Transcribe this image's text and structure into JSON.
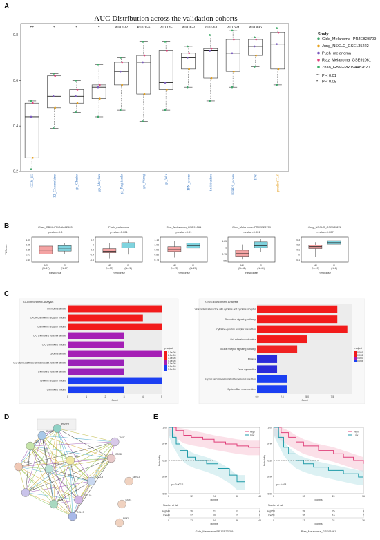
{
  "panels": {
    "a": "A",
    "b": "B",
    "c": "C",
    "d": "D",
    "e": "E"
  },
  "colors": {
    "blue": "#3b78c2",
    "gold": "#e5a020",
    "nr": "#f4a3a3",
    "r": "#7fd3de",
    "gobar_red": "#f21b1b",
    "gobar_purple": "#a51fb5",
    "gobar_blue": "#1b3ff2"
  },
  "chart_data": [
    {
      "id": "A",
      "type": "box",
      "title": "AUC Distribution across the validation cohorts",
      "ylim": [
        0.2,
        0.85
      ],
      "yticks": [
        "0.2",
        "0.4",
        "0.6",
        "0.8"
      ],
      "categories": [
        "COX_IS",
        "12_Chemokine",
        "gs_Chubb",
        "gs_Meylan",
        "gs_Pagliardo",
        "gs_Wang",
        "gs_Wu",
        "IFN_score",
        "infiltration",
        "IPRES_score",
        "IPS",
        "predictTLS"
      ],
      "pvalues": [
        "**",
        "*",
        "*",
        "*",
        "P=0.132",
        "P=0.156",
        "P=0.145",
        "P=0.453",
        "P=0.563",
        "P=0.684",
        "P=0.896",
        ""
      ],
      "boxes": [
        {
          "min": 0.21,
          "q1": 0.26,
          "med": 0.44,
          "q3": 0.5,
          "max": 0.51
        },
        {
          "min": 0.39,
          "q1": 0.48,
          "med": 0.53,
          "q3": 0.62,
          "max": 0.63
        },
        {
          "min": 0.46,
          "q1": 0.5,
          "med": 0.53,
          "q3": 0.56,
          "max": 0.6
        },
        {
          "min": 0.44,
          "q1": 0.52,
          "med": 0.57,
          "q3": 0.58,
          "max": 0.67
        },
        {
          "min": 0.47,
          "q1": 0.58,
          "med": 0.64,
          "q3": 0.68,
          "max": 0.7
        },
        {
          "min": 0.42,
          "q1": 0.54,
          "med": 0.68,
          "q3": 0.71,
          "max": 0.77
        },
        {
          "min": 0.47,
          "q1": 0.56,
          "med": 0.59,
          "q3": 0.73,
          "max": 0.77
        },
        {
          "min": 0.57,
          "q1": 0.65,
          "med": 0.7,
          "q3": 0.72,
          "max": 0.75
        },
        {
          "min": 0.51,
          "q1": 0.61,
          "med": 0.73,
          "q3": 0.74,
          "max": 0.8
        },
        {
          "min": 0.57,
          "q1": 0.64,
          "med": 0.72,
          "q3": 0.78,
          "max": 0.82
        },
        {
          "min": 0.66,
          "q1": 0.71,
          "med": 0.75,
          "q3": 0.78,
          "max": 0.79
        },
        {
          "min": 0.58,
          "q1": 0.65,
          "med": 0.76,
          "q3": 0.81,
          "max": 0.83
        }
      ],
      "legend_title": "Study",
      "legend": [
        {
          "name": "Gide_Melanoma--PRJEB23709",
          "color": "#3fa66b"
        },
        {
          "name": "Jung_NSCLC_GSE135222",
          "color": "#e7a21d"
        },
        {
          "name": "Puch_melanoma",
          "color": "#7b5bbd"
        },
        {
          "name": "Riaz_Melanoma_GSE91061",
          "color": "#e0407a"
        },
        {
          "name": "Zhao_GBM--PRJNA482620",
          "color": "#3fb06a"
        }
      ],
      "sig_legend": [
        {
          "sym": "**",
          "text": "P < 0.01"
        },
        {
          "sym": "*",
          "text": "P < 0.05"
        }
      ]
    },
    {
      "id": "B",
      "type": "box",
      "ylabel": "TLScore",
      "xlabel": "Response",
      "subplots": [
        {
          "title": "Zhao_GBM--PRJNA482620",
          "p": "p.value=0.3",
          "yticks": [
            "0.65",
            "0.75",
            "0.85",
            "0.95",
            "1.05"
          ],
          "ylim": [
            0.6,
            1.1
          ],
          "groups": [
            "NR\n(N=17)",
            "R\n(N=17)"
          ],
          "nr": {
            "min": 0.67,
            "q1": 0.76,
            "med": 0.84,
            "q3": 0.92,
            "max": 1.0
          },
          "r": {
            "min": 0.76,
            "q1": 0.82,
            "med": 0.88,
            "q3": 0.93,
            "max": 0.98
          }
        },
        {
          "title": "Puch_melanoma",
          "p": "p.value=0.001",
          "yticks": [
            "-0.6",
            "-0.4",
            "-0.2",
            "0",
            "0.2"
          ],
          "ylim": [
            -0.7,
            0.3
          ],
          "groups": [
            "NR\n(N=39)",
            "R\n(N=21)"
          ],
          "nr": {
            "min": -0.55,
            "q1": -0.33,
            "med": -0.27,
            "q3": -0.16,
            "max": 0.06
          },
          "r": {
            "min": -0.4,
            "q1": -0.13,
            "med": -0.02,
            "q3": 0.08,
            "max": 0.2
          }
        },
        {
          "title": "Riaz_Melanoma_GSE91061",
          "p": "p.value<0.01",
          "yticks": [
            "0.75",
            "0.85",
            "0.95",
            "1.05",
            "1.15"
          ],
          "ylim": [
            0.7,
            1.2
          ],
          "groups": [
            "NR\n(N=78)",
            "R\n(N=20)"
          ],
          "nr": {
            "min": 0.79,
            "q1": 0.91,
            "med": 0.95,
            "q3": 1.01,
            "max": 1.12
          },
          "r": {
            "min": 0.9,
            "q1": 0.98,
            "med": 1.03,
            "q3": 1.08,
            "max": 1.13
          }
        },
        {
          "title": "Gide_Melanoma--PRJEB23709",
          "p": "p.value<0.001",
          "yticks": [
            "0.5",
            "0.75",
            "1",
            "1.25"
          ],
          "ylim": [
            0.45,
            1.4
          ],
          "groups": [
            "NR\n(N=42)",
            "R\n(N=49)"
          ],
          "nr": {
            "min": 0.55,
            "q1": 0.67,
            "med": 0.77,
            "q3": 0.9,
            "max": 1.12
          },
          "r": {
            "min": 0.82,
            "q1": 1.0,
            "med": 1.07,
            "q3": 1.22,
            "max": 1.33
          }
        },
        {
          "title": "Jung_NSCLC_GSE135222",
          "p": "p.value=0.007",
          "yticks": [
            "-0.1",
            "0",
            "0.1",
            "0.2",
            "0.3"
          ],
          "ylim": [
            -0.15,
            0.35
          ],
          "groups": [
            "NR\n(N=19)",
            "R\n(N=8)"
          ],
          "nr": {
            "min": -0.05,
            "q1": 0.12,
            "med": 0.16,
            "q3": 0.19,
            "max": 0.25
          },
          "r": {
            "min": 0.17,
            "q1": 0.21,
            "med": 0.24,
            "q3": 0.28,
            "max": 0.32
          }
        }
      ]
    },
    {
      "id": "C-GO",
      "type": "bar",
      "title": "GO Enrichment Analysis",
      "xlabel": "Count",
      "xticks": [
        "0",
        "1",
        "2",
        "3",
        "4",
        "5"
      ],
      "xlim": [
        0,
        5
      ],
      "categories": [
        "chemokine activity",
        "CXCR chemokine receptor binding",
        "chemokine receptor binding",
        "C-C chemokine receptor activity",
        "C-C chemokine binding",
        "cytokine activity",
        "G protein-coupled chemoattractant receptor activity",
        "chemokine receptor activity",
        "cytokine receptor binding",
        "chemokine binding"
      ],
      "values": [
        5,
        4,
        5,
        3,
        3,
        5,
        3,
        3,
        5,
        3
      ],
      "colors": [
        "#f21b1b",
        "#f21b1b",
        "#f21b1b",
        "#a51fb5",
        "#a51fb5",
        "#a51fb5",
        "#9a22b8",
        "#9a22b8",
        "#1b3ff2",
        "#1b3ff2"
      ],
      "legend_title": "p.adjust",
      "legend_ticks": [
        "1.0e-06",
        "2.0e-06",
        "3.0e-06",
        "4.0e-06",
        "5.0e-06",
        "6.0e-06",
        "7.0e-06"
      ]
    },
    {
      "id": "C-KEGG",
      "type": "bar",
      "title": "KEGG Enrichment Analysis",
      "xlabel": "Count",
      "xticks": [
        "0.0",
        "2.5",
        "5.0",
        "7.5"
      ],
      "xlim": [
        0,
        9.5
      ],
      "categories": [
        "Viral protein interaction with cytokine and cytokine receptor",
        "Chemokine signaling pathway",
        "Cytokine-cytokine receptor interaction",
        "Cell adhesion molecules",
        "Toll-like receptor signaling pathway",
        "Malaria",
        "Viral myocarditis",
        "Kaposi sarcoma-associated herpesvirus infection",
        "Epstein-Barr virus infection"
      ],
      "values": [
        8,
        8,
        9,
        5,
        4,
        2,
        2,
        3,
        3
      ],
      "colors": [
        "#f21b1b",
        "#f21b1b",
        "#f21b1b",
        "#f21b1b",
        "#f02222",
        "#2b2bd9",
        "#2b2bd9",
        "#1b3ff2",
        "#1b3ff2"
      ],
      "legend_title": "p.adjust",
      "legend_ticks": [
        "0.001",
        "0.002",
        "0.003",
        "0.004"
      ]
    },
    {
      "id": "E",
      "type": "line",
      "ylabel": "Probability",
      "xlabel": "Months",
      "legend": [
        {
          "name": "High",
          "color": "#e0407a"
        },
        {
          "name": "Low",
          "color": "#1f9aa8"
        }
      ],
      "risk_title": "Number at risk",
      "subplots": [
        {
          "name": "Gide_Melanoma-PRJEB23709",
          "p": "p = 0.00011",
          "xlim": [
            0,
            48
          ],
          "xticks": [
            "0",
            "12",
            "24",
            "36",
            "48"
          ],
          "yticks": [
            "0.00",
            "0.25",
            "0.50",
            "0.75",
            "1.00"
          ],
          "high": [
            [
              0,
              1
            ],
            [
              4,
              0.95
            ],
            [
              8,
              0.88
            ],
            [
              12,
              0.85
            ],
            [
              18,
              0.82
            ],
            [
              24,
              0.78
            ],
            [
              30,
              0.75
            ],
            [
              36,
              0.72
            ],
            [
              42,
              0.7
            ],
            [
              48,
              0.7
            ]
          ],
          "low": [
            [
              0,
              1
            ],
            [
              2,
              0.85
            ],
            [
              4,
              0.75
            ],
            [
              6,
              0.65
            ],
            [
              10,
              0.55
            ],
            [
              14,
              0.5
            ],
            [
              20,
              0.45
            ],
            [
              26,
              0.38
            ],
            [
              32,
              0.28
            ],
            [
              36,
              0.18
            ],
            [
              40,
              0.18
            ]
          ],
          "risk": {
            "High": [
              "45",
              "36",
              "21",
              "12",
              "4"
            ],
            "Low": [
              "46",
              "27",
              "10",
              "2",
              "0"
            ]
          }
        },
        {
          "name": "Riaz_Melanoma_GSE91061",
          "p": "p = 0.018",
          "xlim": [
            0,
            36
          ],
          "xticks": [
            "0",
            "12",
            "24",
            "36"
          ],
          "yticks": [
            "0.00",
            "0.25",
            "0.50",
            "0.75",
            "1.00"
          ],
          "high": [
            [
              0,
              1
            ],
            [
              3,
              0.92
            ],
            [
              6,
              0.85
            ],
            [
              9,
              0.78
            ],
            [
              12,
              0.72
            ],
            [
              18,
              0.65
            ],
            [
              24,
              0.6
            ],
            [
              28,
              0.55
            ],
            [
              32,
              0.5
            ],
            [
              36,
              0.45
            ]
          ],
          "low": [
            [
              0,
              1
            ],
            [
              2,
              0.85
            ],
            [
              4,
              0.7
            ],
            [
              6,
              0.6
            ],
            [
              9,
              0.5
            ],
            [
              12,
              0.45
            ],
            [
              16,
              0.4
            ],
            [
              22,
              0.35
            ],
            [
              28,
              0.3
            ],
            [
              34,
              0.25
            ],
            [
              36,
              0.25
            ]
          ],
          "risk": {
            "High": [
              "50",
              "39",
              "25",
              "4"
            ],
            "Low": [
              "51",
              "26",
              "16",
              "2"
            ]
          }
        }
      ]
    },
    {
      "id": "D",
      "type": "network",
      "nodes": [
        {
          "label": "PDCD1",
          "fx": 0.37,
          "fy": 0.05,
          "color": "#8fd1c5"
        },
        {
          "label": "TIGIT",
          "fx": 0.86,
          "fy": 0.18,
          "color": "#d8c9e8"
        },
        {
          "label": "CD38",
          "fx": 0.83,
          "fy": 0.34,
          "color": "#e8c9c9"
        },
        {
          "label": "CXCL9",
          "fx": 0.66,
          "fy": 0.56,
          "color": "#c9d8f0"
        },
        {
          "label": "CXCL10",
          "fx": 0.55,
          "fy": 0.74,
          "color": "#d2b7e5"
        },
        {
          "label": "CCR",
          "fx": 0.34,
          "fy": 0.78,
          "color": "#a8d8c0"
        },
        {
          "label": "CCL",
          "fx": 0.1,
          "fy": 0.67,
          "color": "#c9c3ea"
        },
        {
          "label": "LAMP3",
          "fx": 0.04,
          "fy": 0.42,
          "color": "#f0c8b5"
        },
        {
          "label": "CD4",
          "fx": 0.14,
          "fy": 0.22,
          "color": "#c5e3a8"
        },
        {
          "label": "CXCR",
          "fx": 0.24,
          "fy": 0.12,
          "color": "#a8c8e8"
        },
        {
          "label": "SELL",
          "fx": 0.48,
          "fy": 0.36,
          "color": "#efe7a0"
        },
        {
          "label": "GZMK",
          "fx": 0.3,
          "fy": 0.44,
          "color": "#b9e0d5"
        },
        {
          "label": "CCL19",
          "fx": 0.5,
          "fy": 0.9,
          "color": "#a8b8e8"
        }
      ],
      "isolated": [
        {
          "label": "SERL3",
          "fx": 0.98,
          "fy": 0.56
        },
        {
          "label": "SSR4",
          "fx": 0.92,
          "fy": 0.78
        },
        {
          "label": "PIM2",
          "fx": 0.9,
          "fy": 0.96
        }
      ]
    }
  ]
}
